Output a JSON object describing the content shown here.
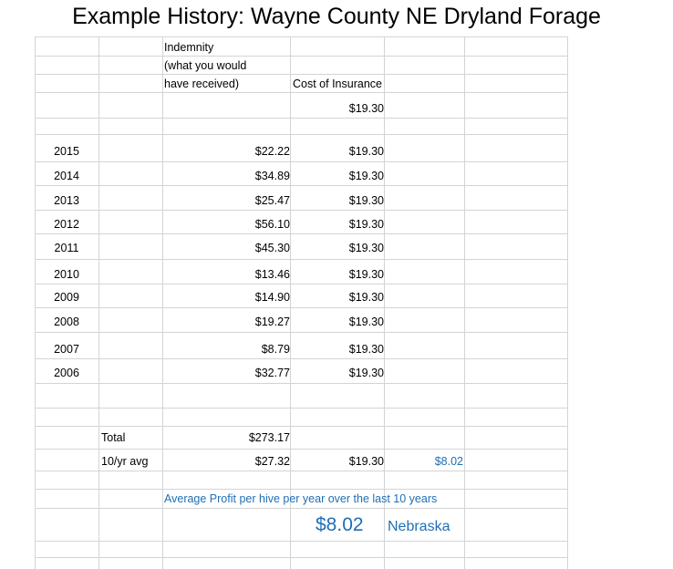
{
  "title": "Example History: Wayne County NE Dryland Forage",
  "headers": {
    "indemnity_line1": "Indemnity",
    "indemnity_line2": "(what you would",
    "indemnity_line3": "have received)",
    "cost": "Cost of Insurance"
  },
  "base_cost": "$19.30",
  "rows": [
    {
      "year": "2015",
      "indemnity": "$22.22",
      "cost": "$19.30"
    },
    {
      "year": "2014",
      "indemnity": "$34.89",
      "cost": "$19.30"
    },
    {
      "year": "2013",
      "indemnity": "$25.47",
      "cost": "$19.30"
    },
    {
      "year": "2012",
      "indemnity": "$56.10",
      "cost": "$19.30"
    },
    {
      "year": "2011",
      "indemnity": "$45.30",
      "cost": "$19.30"
    },
    {
      "year": "2010",
      "indemnity": "$13.46",
      "cost": "$19.30"
    },
    {
      "year": "2009",
      "indemnity": "$14.90",
      "cost": "$19.30"
    },
    {
      "year": "2008",
      "indemnity": "$19.27",
      "cost": "$19.30"
    },
    {
      "year": "2007",
      "indemnity": "$8.79",
      "cost": "$19.30"
    },
    {
      "year": "2006",
      "indemnity": "$32.77",
      "cost": "$19.30"
    }
  ],
  "total": {
    "label": "Total",
    "indemnity": "$273.17"
  },
  "avg": {
    "label": "10/yr avg",
    "indemnity": "$27.32",
    "cost": "$19.30",
    "profit": "$8.02"
  },
  "summary": {
    "text": "Average Profit per hive per year  over the last 10 years",
    "big_value": "$8.02",
    "state": "Nebraska"
  }
}
